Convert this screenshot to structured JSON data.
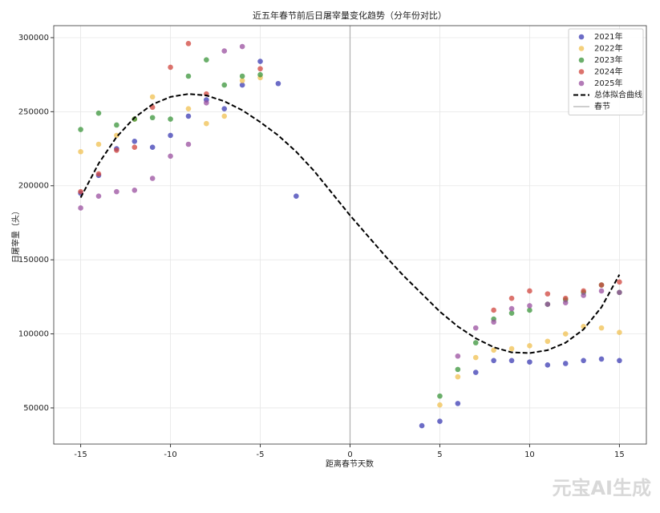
{
  "chart_data": {
    "type": "scatter",
    "title": "近五年春节前后日屠宰量变化趋势（分年份对比）",
    "x_label": "距离春节天数",
    "y_label": "日屠宰量（头）",
    "xlim": [
      -16.5,
      16.5
    ],
    "xticks": [
      -15,
      -10,
      -5,
      0,
      5,
      10,
      15
    ],
    "ylim": [
      25600,
      308100
    ],
    "yticks": [
      50000,
      100000,
      150000,
      200000,
      250000,
      300000
    ],
    "grid": true,
    "legend": "upper right",
    "series": [
      {
        "name": "2021年",
        "type": "scatter",
        "color": "#3b3bb3",
        "x": [
          -15,
          -14,
          -13,
          -12,
          -11,
          -10,
          -9,
          -8,
          -7,
          -6,
          -5,
          -4,
          -3,
          4,
          5,
          6,
          7,
          8,
          9,
          10,
          11,
          12,
          13,
          14,
          15
        ],
        "values": [
          195000,
          207000,
          225000,
          230000,
          226000,
          234000,
          247000,
          258000,
          252000,
          268000,
          284000,
          269000,
          193000,
          38000,
          41000,
          53000,
          74000,
          82000,
          82000,
          81000,
          79000,
          80000,
          82000,
          83000,
          82000
        ]
      },
      {
        "name": "2022年",
        "type": "scatter",
        "color": "#f0c050",
        "x": [
          -15,
          -14,
          -13,
          -12,
          -11,
          -9,
          -8,
          -7,
          -6,
          -5,
          5,
          6,
          7,
          8,
          9,
          10,
          11,
          12,
          13,
          14,
          15
        ],
        "values": [
          223000,
          228000,
          234000,
          245000,
          260000,
          252000,
          242000,
          247000,
          271000,
          273000,
          52000,
          71000,
          84000,
          89000,
          90000,
          92000,
          95000,
          100000,
          105000,
          104000,
          101000
        ]
      },
      {
        "name": "2023年",
        "type": "scatter",
        "color": "#3a943a",
        "x": [
          -15,
          -14,
          -13,
          -12,
          -11,
          -10,
          -9,
          -8,
          -7,
          -6,
          -5,
          5,
          6,
          7,
          8,
          9,
          10,
          11,
          12,
          13,
          14,
          15
        ],
        "values": [
          238000,
          249000,
          241000,
          245000,
          246000,
          245000,
          274000,
          285000,
          268000,
          274000,
          275000,
          58000,
          76000,
          94000,
          110000,
          114000,
          116000,
          120000,
          123000,
          128000,
          133000,
          128000
        ]
      },
      {
        "name": "2024年",
        "type": "scatter",
        "color": "#d0443c",
        "x": [
          -15,
          -14,
          -13,
          -12,
          -11,
          -10,
          -9,
          -8,
          -5,
          8,
          9,
          10,
          11,
          12,
          13,
          14,
          15
        ],
        "values": [
          196000,
          208000,
          224000,
          226000,
          253000,
          280000,
          296000,
          262000,
          279000,
          116000,
          124000,
          129000,
          127000,
          124000,
          129000,
          133000,
          135000
        ]
      },
      {
        "name": "2025年",
        "type": "scatter",
        "color": "#9a4f9f",
        "x": [
          -15,
          -14,
          -13,
          -12,
          -11,
          -10,
          -9,
          -8,
          -7,
          -6,
          6,
          7,
          8,
          9,
          10,
          11,
          12,
          13,
          14,
          15
        ],
        "values": [
          185000,
          193000,
          196000,
          197000,
          205000,
          220000,
          228000,
          256000,
          291000,
          294000,
          85000,
          104000,
          108000,
          117000,
          119000,
          120000,
          121000,
          126000,
          129000,
          128000
        ]
      },
      {
        "name": "总体拟合曲线",
        "type": "line",
        "color": "#000000",
        "x": [
          -15,
          -14,
          -13,
          -12,
          -11,
          -10,
          -9,
          -8,
          -7,
          -6,
          -5,
          -4,
          -3,
          -2,
          -1,
          0,
          1,
          2,
          3,
          4,
          5,
          6,
          7,
          8,
          9,
          10,
          11,
          12,
          13,
          14,
          15
        ],
        "values": [
          192000,
          215000,
          233000,
          246000,
          255000,
          260000,
          262000,
          261000,
          257000,
          251000,
          243000,
          234000,
          223000,
          210000,
          195000,
          180000,
          166000,
          152000,
          139000,
          127000,
          115000,
          105000,
          97000,
          91000,
          87500,
          87000,
          89000,
          94000,
          103000,
          118000,
          140000
        ]
      }
    ],
    "reference_line": {
      "name": "春节",
      "x": 0,
      "color": "#b0b0b0"
    },
    "watermark": "元宝AI生成"
  }
}
